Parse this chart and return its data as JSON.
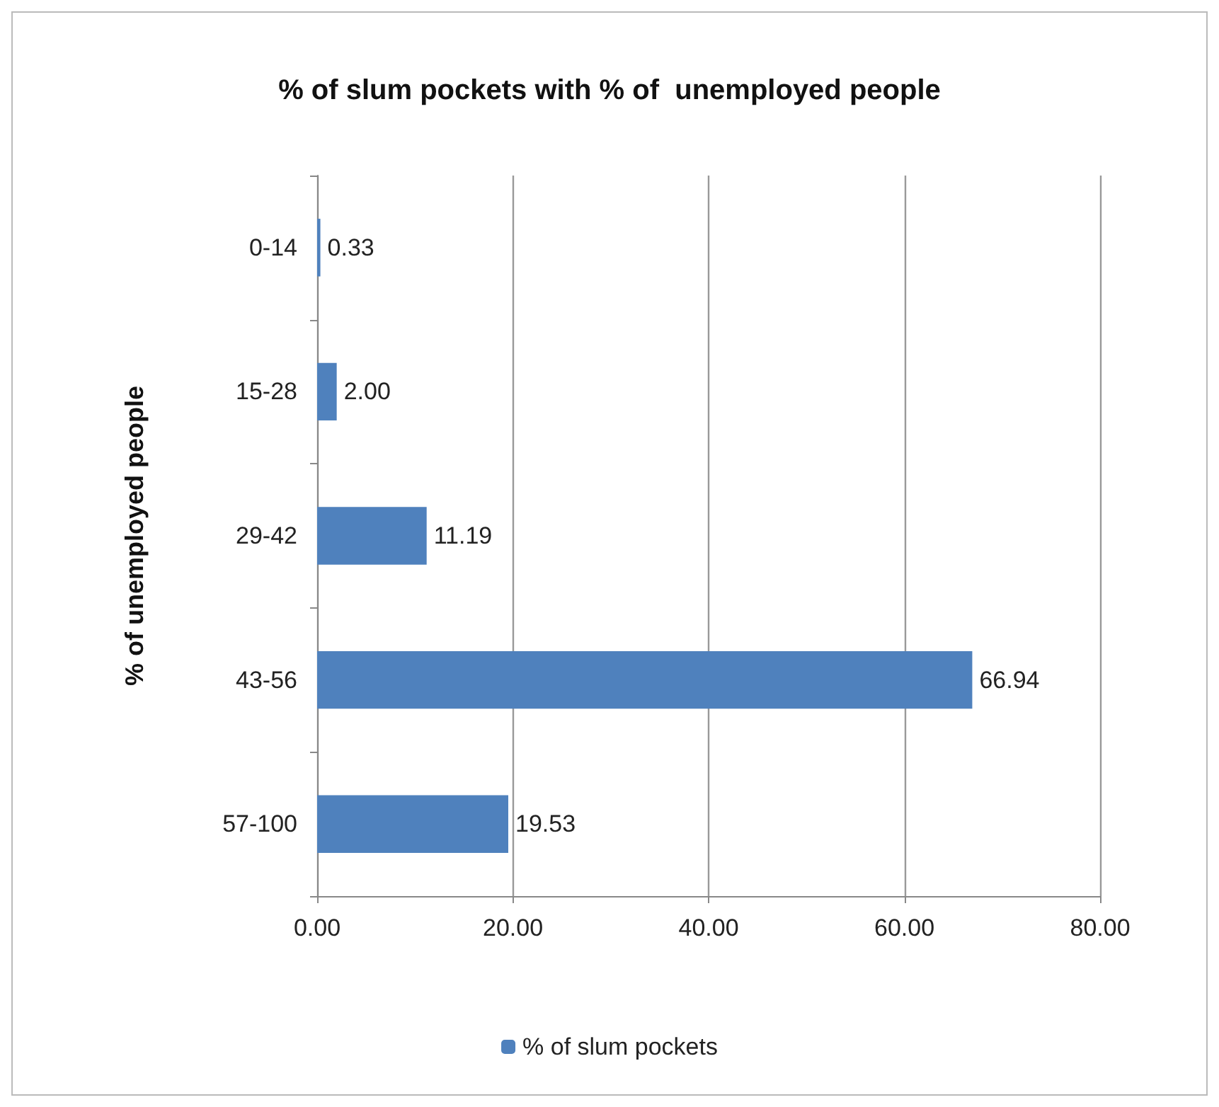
{
  "chart_data": {
    "type": "bar",
    "orientation": "horizontal",
    "title": "% of slum pockets with % of  unemployed people",
    "ylabel": "% of unemployed people",
    "categories": [
      "0-14",
      "15-28",
      "29-42",
      "43-56",
      "57-100"
    ],
    "series": [
      {
        "name": "% of slum pockets",
        "color": "#4f81bd",
        "values": [
          0.33,
          2.0,
          11.19,
          66.94,
          19.53
        ],
        "value_labels": [
          "0.33",
          "2.00",
          "11.19",
          "66.94",
          "19.53"
        ]
      }
    ],
    "xlim": [
      0,
      80
    ],
    "xticks": [
      {
        "value": 0,
        "label": "0.00"
      },
      {
        "value": 20,
        "label": "20.00"
      },
      {
        "value": 40,
        "label": "40.00"
      },
      {
        "value": 60,
        "label": "60.00"
      },
      {
        "value": 80,
        "label": "80.00"
      }
    ],
    "grid": "x",
    "legend": "bottom"
  }
}
